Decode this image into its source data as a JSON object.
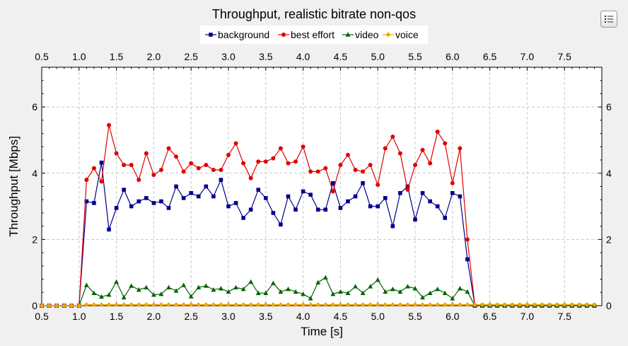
{
  "chart_data": {
    "type": "line",
    "title": "Throughput, realistic bitrate non-qos",
    "xlabel": "Time [s]",
    "ylabel": "Throughput [Mbps]",
    "xlim": [
      0.5,
      8.0
    ],
    "ylim": [
      0,
      7.2
    ],
    "xticks": [
      "0.5",
      "1.0",
      "1.5",
      "2.0",
      "2.5",
      "3.0",
      "3.5",
      "4.0",
      "4.5",
      "5.0",
      "5.5",
      "6.0",
      "6.5",
      "7.0",
      "7.5"
    ],
    "yticks": [
      "0",
      "2",
      "4",
      "6"
    ],
    "grid": true,
    "legend_position": "top-center",
    "x": [
      0.5,
      0.6,
      0.7,
      0.8,
      0.9,
      1.0,
      1.1,
      1.2,
      1.3,
      1.4,
      1.5,
      1.6,
      1.7,
      1.8,
      1.9,
      2.0,
      2.1,
      2.2,
      2.3,
      2.4,
      2.5,
      2.6,
      2.7,
      2.8,
      2.9,
      3.0,
      3.1,
      3.2,
      3.3,
      3.4,
      3.5,
      3.6,
      3.7,
      3.8,
      3.9,
      4.0,
      4.1,
      4.2,
      4.3,
      4.4,
      4.5,
      4.6,
      4.7,
      4.8,
      4.9,
      5.0,
      5.1,
      5.2,
      5.3,
      5.4,
      5.5,
      5.6,
      5.7,
      5.8,
      5.9,
      6.0,
      6.1,
      6.2,
      6.3,
      6.4,
      6.5,
      6.6,
      6.7,
      6.8,
      6.9,
      7.0,
      7.1,
      7.2,
      7.3,
      7.4,
      7.5,
      7.6,
      7.7,
      7.8,
      7.9
    ],
    "series": [
      {
        "name": "background",
        "color": "#00008b",
        "marker": "square",
        "values": [
          0,
          0,
          0,
          0,
          0,
          0,
          3.15,
          3.1,
          4.32,
          2.3,
          2.95,
          3.5,
          3.0,
          3.15,
          3.25,
          3.1,
          3.15,
          2.95,
          3.6,
          3.25,
          3.4,
          3.3,
          3.6,
          3.3,
          3.8,
          3.0,
          3.1,
          2.65,
          2.9,
          3.5,
          3.25,
          2.8,
          2.45,
          3.3,
          2.9,
          3.45,
          3.35,
          2.9,
          2.9,
          3.7,
          2.95,
          3.15,
          3.3,
          3.7,
          3.0,
          3.0,
          3.25,
          2.4,
          3.4,
          3.6,
          2.6,
          3.4,
          3.15,
          3.0,
          2.65,
          3.4,
          3.3,
          1.4,
          0,
          0,
          0,
          0,
          0,
          0,
          0,
          0,
          0,
          0,
          0,
          0,
          0,
          0,
          0,
          0,
          0
        ]
      },
      {
        "name": "best effort",
        "color": "#e00000",
        "marker": "circle",
        "values": [
          0,
          0,
          0,
          0,
          0,
          0,
          3.8,
          4.15,
          3.75,
          5.45,
          4.6,
          4.25,
          4.25,
          3.8,
          4.6,
          3.95,
          4.1,
          4.75,
          4.5,
          4.05,
          4.3,
          4.15,
          4.25,
          4.1,
          4.1,
          4.55,
          4.9,
          4.3,
          3.85,
          4.35,
          4.35,
          4.45,
          4.75,
          4.3,
          4.35,
          4.8,
          4.05,
          4.05,
          4.15,
          3.45,
          4.25,
          4.55,
          4.1,
          4.05,
          4.25,
          3.65,
          4.75,
          5.1,
          4.6,
          3.5,
          4.25,
          4.7,
          4.3,
          5.25,
          4.9,
          3.7,
          4.75,
          2.0,
          0,
          0,
          0,
          0,
          0,
          0,
          0,
          0,
          0,
          0,
          0,
          0,
          0,
          0,
          0,
          0,
          0
        ]
      },
      {
        "name": "video",
        "color": "#006400",
        "marker": "triangle",
        "values": [
          0,
          0,
          0,
          0,
          0,
          0,
          0.62,
          0.38,
          0.27,
          0.33,
          0.72,
          0.25,
          0.6,
          0.48,
          0.55,
          0.33,
          0.35,
          0.55,
          0.45,
          0.62,
          0.28,
          0.55,
          0.6,
          0.48,
          0.52,
          0.42,
          0.55,
          0.5,
          0.72,
          0.38,
          0.38,
          0.68,
          0.42,
          0.5,
          0.42,
          0.35,
          0.22,
          0.7,
          0.85,
          0.35,
          0.42,
          0.38,
          0.58,
          0.38,
          0.58,
          0.78,
          0.42,
          0.5,
          0.42,
          0.58,
          0.52,
          0.25,
          0.38,
          0.5,
          0.38,
          0.22,
          0.52,
          0.42,
          0,
          0,
          0,
          0,
          0,
          0,
          0,
          0,
          0,
          0,
          0,
          0,
          0,
          0,
          0,
          0,
          0
        ]
      },
      {
        "name": "voice",
        "color": "#f5a500",
        "marker": "diamond",
        "values": [
          0,
          0,
          0,
          0,
          0,
          0,
          0.03,
          0.03,
          0.03,
          0.03,
          0.03,
          0.03,
          0.03,
          0.03,
          0.03,
          0.03,
          0.03,
          0.03,
          0.03,
          0.03,
          0.03,
          0.03,
          0.03,
          0.03,
          0.03,
          0.03,
          0.03,
          0.03,
          0.03,
          0.03,
          0.03,
          0.03,
          0.03,
          0.03,
          0.03,
          0.03,
          0.03,
          0.03,
          0.03,
          0.03,
          0.03,
          0.03,
          0.03,
          0.03,
          0.03,
          0.03,
          0.03,
          0.03,
          0.03,
          0.03,
          0.03,
          0.03,
          0.03,
          0.03,
          0.03,
          0.03,
          0.03,
          0.03,
          0.03,
          0.03,
          0.03,
          0.03,
          0.03,
          0.03,
          0.03,
          0.03,
          0.03,
          0.03,
          0.03,
          0.03,
          0.03,
          0.03,
          0.03,
          0.03,
          0.03
        ]
      }
    ]
  },
  "ui": {
    "menu_icon": "list-icon"
  }
}
